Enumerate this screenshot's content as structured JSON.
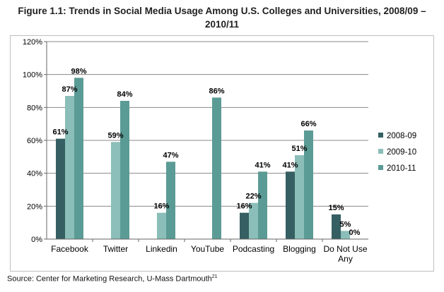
{
  "figure": {
    "title_line1": "Figure 1.1: Trends in Social Media Usage Among U.S. Colleges and Universities, 2008/09 –",
    "title_line2": "2010/11",
    "source_text": "Source: Center for Marketing Research, U-Mass Dartmouth",
    "source_footnote": "21"
  },
  "colors": {
    "series": [
      "#355f62",
      "#8bbeb8",
      "#5b9b95"
    ],
    "grid": "#888888",
    "axis": "#666666"
  },
  "chart_data": {
    "type": "bar",
    "categories": [
      "Facebook",
      "Twitter",
      "Linkedin",
      "YouTube",
      "Podcasting",
      "Blogging",
      "Do Not Use Any"
    ],
    "category_label_lines": [
      [
        "Facebook"
      ],
      [
        "Twitter"
      ],
      [
        "Linkedin"
      ],
      [
        "YouTube"
      ],
      [
        "Podcasting"
      ],
      [
        "Blogging"
      ],
      [
        "Do Not Use",
        "Any"
      ]
    ],
    "series": [
      {
        "name": "2008-09",
        "values": [
          61,
          null,
          null,
          null,
          16,
          41,
          15
        ]
      },
      {
        "name": "2009-10",
        "values": [
          87,
          59,
          16,
          null,
          22,
          51,
          5
        ]
      },
      {
        "name": "2010-11",
        "values": [
          98,
          84,
          47,
          86,
          41,
          66,
          0
        ]
      }
    ],
    "ylim": [
      0,
      120
    ],
    "yticks": [
      0,
      20,
      40,
      60,
      80,
      100,
      120
    ],
    "ytick_labels": [
      "0%",
      "20%",
      "40%",
      "60%",
      "80%",
      "100%",
      "120%"
    ],
    "value_suffix": "%",
    "grid": true,
    "legend_position": "right"
  }
}
